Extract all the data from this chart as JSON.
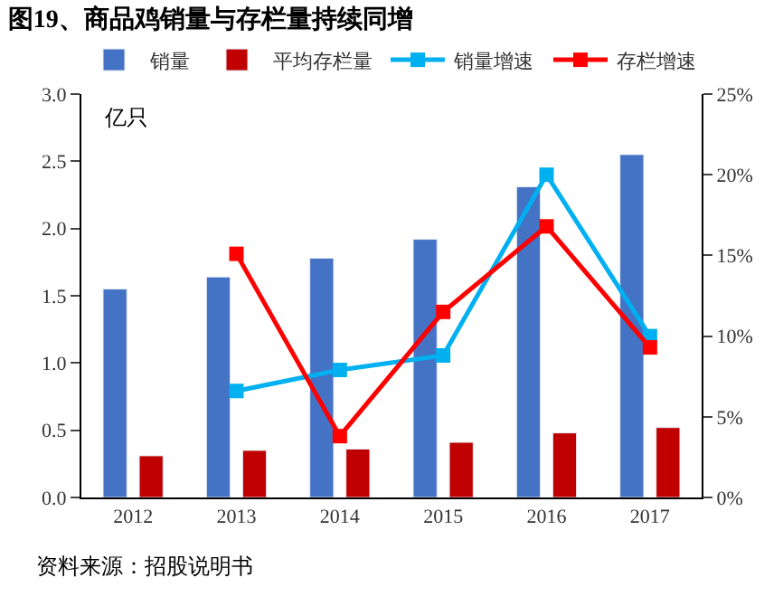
{
  "chart_data": {
    "type": "bar",
    "title": "图19、商品鸡销量与存栏量持续同增",
    "categories": [
      "2012",
      "2013",
      "2014",
      "2015",
      "2016",
      "2017"
    ],
    "series": [
      {
        "name": "销量",
        "color": "#4472c4",
        "values": [
          1.55,
          1.64,
          1.78,
          1.92,
          2.31,
          2.55
        ]
      },
      {
        "name": "平均存栏量",
        "color": "#c00000",
        "values": [
          0.31,
          0.35,
          0.36,
          0.41,
          0.48,
          0.52
        ]
      },
      {
        "name": "销量增速",
        "type": "line",
        "axis": "y2",
        "color": "#00b0f0",
        "values": [
          null,
          6.6,
          7.9,
          8.8,
          20.0,
          10.0
        ]
      },
      {
        "name": "存栏增速",
        "type": "line",
        "axis": "y2",
        "color": "#ff0000",
        "values": [
          null,
          15.1,
          3.8,
          11.5,
          16.8,
          9.3
        ]
      }
    ],
    "ylim": [
      0,
      3.0
    ],
    "yticks": [
      {
        "value": 0,
        "label": "0.0"
      },
      {
        "value": 0.5,
        "label": "0.5"
      },
      {
        "value": 1,
        "label": "1.0"
      },
      {
        "value": 1.5,
        "label": "1.5"
      },
      {
        "value": 2,
        "label": "2.0"
      },
      {
        "value": 2.5,
        "label": "2.5"
      },
      {
        "value": 3,
        "label": "3.0"
      }
    ],
    "y2lim": [
      0,
      25
    ],
    "y2ticks": [
      {
        "value": 0,
        "label": "0%"
      },
      {
        "value": 5,
        "label": "5%"
      },
      {
        "value": 10,
        "label": "10%"
      },
      {
        "value": 15,
        "label": "15%"
      },
      {
        "value": 20,
        "label": "20%"
      },
      {
        "value": 25,
        "label": "25%"
      }
    ],
    "annotations": [
      {
        "text": "亿只"
      },
      "资料来源：招股说明书"
    ],
    "marker": "square",
    "line_style": "solid",
    "grid": false,
    "legend": "top"
  }
}
